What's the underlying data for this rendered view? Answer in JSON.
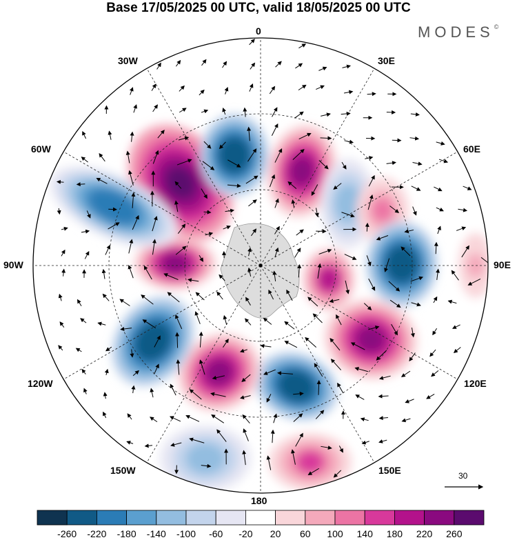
{
  "title": "Base 17/05/2025 00 UTC, valid 18/05/2025 00 UTC",
  "brand": "MODES",
  "brand_mark": "©",
  "longitude_labels": {
    "top": "0",
    "upper_left": "30W",
    "upper_right": "30E",
    "left_upper": "60W",
    "right_upper": "60E",
    "left": "90W",
    "right": "90E",
    "left_lower": "120W",
    "right_lower": "120E",
    "lower_left": "150W",
    "lower_right": "150E",
    "bottom": "180"
  },
  "vector_reference": {
    "value": "30"
  },
  "map": {
    "projection": "south polar stereographic",
    "centre": "South Pole",
    "anomalies": [
      {
        "sign": "positive",
        "location": "near 30W",
        "peak": 260
      },
      {
        "sign": "negative",
        "location": "near 10W",
        "peak": -260
      },
      {
        "sign": "positive",
        "location": "near 20E",
        "peak": 220
      },
      {
        "sign": "negative",
        "location": "near 45E",
        "peak": -120
      },
      {
        "sign": "positive",
        "location": "near 60E",
        "peak": 100
      },
      {
        "sign": "negative",
        "location": "near 90E",
        "peak": -260
      },
      {
        "sign": "positive",
        "location": "near 100E",
        "peak": 180
      },
      {
        "sign": "positive",
        "location": "near 120E",
        "peak": 220
      },
      {
        "sign": "negative",
        "location": "near 150E",
        "peak": -260
      },
      {
        "sign": "positive",
        "location": "near 160E",
        "peak": 140
      },
      {
        "sign": "positive",
        "location": "near 150W",
        "peak": 220
      },
      {
        "sign": "negative",
        "location": "near 120W",
        "peak": -260
      },
      {
        "sign": "negative",
        "location": "near 165W",
        "peak": -140
      },
      {
        "sign": "positive",
        "location": "near 90W",
        "peak": 220
      },
      {
        "sign": "negative",
        "location": "near 70W",
        "peak": -220
      },
      {
        "sign": "positive",
        "location": "near 85E",
        "peak": 60
      }
    ]
  },
  "colorbar": {
    "ticks": [
      "-260",
      "-220",
      "-180",
      "-140",
      "-100",
      "-60",
      "-20",
      "20",
      "60",
      "100",
      "140",
      "180",
      "220",
      "260"
    ],
    "colors": [
      "#0f3350",
      "#115a86",
      "#2b7cb6",
      "#5b9fcf",
      "#93bde0",
      "#c3d4ec",
      "#e6e6f3",
      "#ffffff",
      "#f9d6da",
      "#f4a9bb",
      "#ec74a4",
      "#d8399b",
      "#b3128b",
      "#8a0a7f",
      "#5b0b6e"
    ]
  }
}
